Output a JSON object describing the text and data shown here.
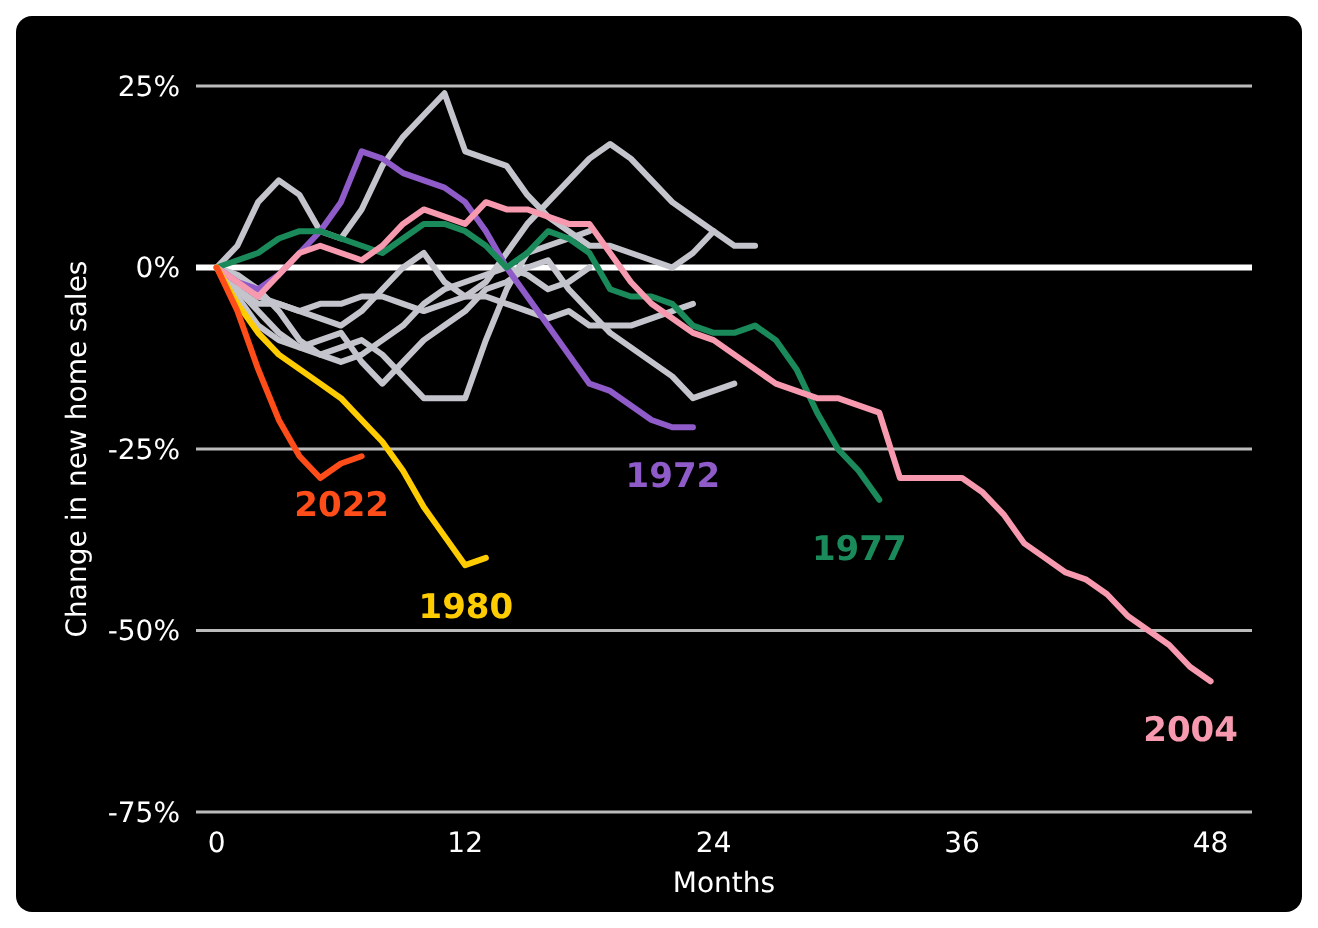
{
  "chart_data": {
    "type": "line",
    "xlabel": "Months",
    "ylabel": "Change in new home sales",
    "xlim": [
      -1,
      50
    ],
    "xticks": [
      0,
      12,
      24,
      36,
      48
    ],
    "ylim": [
      -75,
      25
    ],
    "yticks": [
      {
        "value": 25,
        "label": "25%"
      },
      {
        "value": 0,
        "label": "0%"
      },
      {
        "value": -25,
        "label": "-25%"
      },
      {
        "value": -50,
        "label": "-50%"
      },
      {
        "value": -75,
        "label": "-75%"
      }
    ],
    "grid": "y",
    "marker": "none",
    "line_style": "solid",
    "ref_lines": [
      {
        "axis": "y",
        "value": 0,
        "color": "#ffffff"
      }
    ],
    "series": [
      {
        "color": "#c4c4cc",
        "x": [
          0,
          1,
          2,
          3,
          4,
          5,
          6,
          7,
          8,
          9,
          10,
          11,
          12,
          13,
          14,
          15,
          16,
          17,
          18,
          19,
          20,
          21,
          22,
          23,
          24
        ],
        "values": [
          0,
          3,
          9,
          12,
          10,
          5,
          4,
          8,
          14,
          18,
          21,
          24,
          16,
          15,
          14,
          10,
          7,
          5,
          3,
          3,
          2,
          1,
          0,
          2,
          5
        ]
      },
      {
        "color": "#c4c4cc",
        "x": [
          0,
          1,
          2,
          3,
          4,
          5,
          6,
          7,
          8,
          9,
          10,
          11,
          12,
          13,
          14,
          15,
          16,
          17,
          18,
          19,
          20,
          21,
          22,
          23,
          24,
          25,
          26
        ],
        "values": [
          0,
          -2,
          -4,
          -5,
          -6,
          -7,
          -8,
          -6,
          -3,
          0,
          2,
          -2,
          -4,
          -2,
          2,
          6,
          9,
          12,
          15,
          17,
          15,
          12,
          9,
          7,
          5,
          3,
          3
        ]
      },
      {
        "color": "#c4c4cc",
        "x": [
          0,
          1,
          2,
          3,
          4,
          5,
          6,
          7,
          8,
          9,
          10,
          11,
          12,
          13,
          14,
          15,
          16,
          17,
          18
        ],
        "values": [
          0,
          -3,
          -6,
          -9,
          -11,
          -12,
          -11,
          -10,
          -12,
          -15,
          -18,
          -18,
          -18,
          -10,
          -3,
          2,
          3,
          4,
          5
        ]
      },
      {
        "color": "#c4c4cc",
        "x": [
          0,
          1,
          2,
          3,
          4,
          5,
          6,
          7,
          8,
          9,
          10,
          11,
          12,
          13,
          14,
          15,
          16,
          17,
          18,
          19,
          20,
          21,
          22,
          23
        ],
        "values": [
          0,
          -3,
          -5,
          -5,
          -6,
          -5,
          -5,
          -4,
          -4,
          -5,
          -6,
          -5,
          -4,
          -4,
          -5,
          -6,
          -7,
          -6,
          -8,
          -8,
          -8,
          -7,
          -6,
          -5
        ]
      },
      {
        "color": "#c4c4cc",
        "x": [
          0,
          1,
          2,
          3,
          4,
          5,
          6,
          7,
          8,
          9,
          10,
          11,
          12,
          13,
          14,
          15,
          16,
          17,
          18,
          19,
          20,
          21,
          22,
          23,
          24,
          25
        ],
        "values": [
          0,
          -4,
          -8,
          -10,
          -11,
          -10,
          -9,
          -13,
          -16,
          -13,
          -10,
          -8,
          -6,
          -3,
          -2,
          0,
          1,
          -3,
          -6,
          -9,
          -11,
          -13,
          -15,
          -18,
          -17,
          -16
        ]
      },
      {
        "color": "#c4c4cc",
        "x": [
          0,
          1,
          2,
          3,
          4,
          5,
          6,
          7,
          8,
          9,
          10,
          11,
          12,
          13,
          14,
          15,
          16,
          17,
          18
        ],
        "values": [
          0,
          -1,
          -3,
          -6,
          -10,
          -12,
          -13,
          -12,
          -10,
          -8,
          -5,
          -3,
          -2,
          -1,
          0,
          -1,
          -3,
          -2,
          0
        ]
      },
      {
        "name": "1972",
        "color": "#8e5bc8",
        "x": [
          0,
          1,
          2,
          3,
          4,
          5,
          6,
          7,
          8,
          9,
          10,
          11,
          12,
          13,
          14,
          15,
          16,
          17,
          18,
          19,
          20,
          21,
          22,
          23
        ],
        "values": [
          0,
          -2,
          -3,
          -1,
          2,
          5,
          9,
          16,
          15,
          13,
          12,
          11,
          9,
          5,
          0,
          -4,
          -8,
          -12,
          -16,
          -17,
          -19,
          -21,
          -22,
          -22
        ]
      },
      {
        "name": "1977",
        "color": "#1a8a5a",
        "x": [
          0,
          1,
          2,
          3,
          4,
          5,
          6,
          7,
          8,
          9,
          10,
          11,
          12,
          13,
          14,
          15,
          16,
          17,
          18,
          19,
          20,
          21,
          22,
          23,
          24,
          25,
          26,
          27,
          28,
          29,
          30,
          31,
          32
        ],
        "values": [
          0,
          1,
          2,
          4,
          5,
          5,
          4,
          3,
          2,
          4,
          6,
          6,
          5,
          3,
          0,
          2,
          5,
          4,
          2,
          -3,
          -4,
          -4,
          -5,
          -8,
          -9,
          -9,
          -8,
          -10,
          -14,
          -20,
          -25,
          -28,
          -32
        ]
      },
      {
        "name": "2004",
        "color": "#f79ab0",
        "x": [
          0,
          1,
          2,
          3,
          4,
          5,
          6,
          7,
          8,
          9,
          10,
          11,
          12,
          13,
          14,
          15,
          16,
          17,
          18,
          19,
          20,
          21,
          22,
          23,
          24,
          25,
          26,
          27,
          28,
          29,
          30,
          31,
          32,
          33,
          34,
          35,
          36,
          37,
          38,
          39,
          40,
          41,
          42,
          43,
          44,
          45,
          46,
          47,
          48
        ],
        "values": [
          0,
          -2,
          -4,
          -1,
          2,
          3,
          2,
          1,
          3,
          6,
          8,
          7,
          6,
          9,
          8,
          8,
          7,
          6,
          6,
          2,
          -2,
          -5,
          -7,
          -9,
          -10,
          -12,
          -14,
          -16,
          -17,
          -18,
          -18,
          -19,
          -20,
          -29,
          -29,
          -29,
          -29,
          -31,
          -34,
          -38,
          -40,
          -42,
          -43,
          -45,
          -48,
          -50,
          -52,
          -55,
          -57
        ]
      },
      {
        "name": "1980",
        "color": "#ffcc00",
        "x": [
          0,
          1,
          2,
          3,
          4,
          5,
          6,
          7,
          8,
          9,
          10,
          11,
          12,
          13
        ],
        "values": [
          0,
          -5,
          -9,
          -12,
          -14,
          -16,
          -18,
          -21,
          -24,
          -28,
          -33,
          -37,
          -41,
          -40
        ]
      },
      {
        "name": "2022",
        "color": "#ff4d1a",
        "x": [
          0,
          1,
          2,
          3,
          4,
          5,
          6,
          7
        ],
        "values": [
          0,
          -6,
          -14,
          -21,
          -26,
          -29,
          -27,
          -26
        ]
      }
    ]
  }
}
